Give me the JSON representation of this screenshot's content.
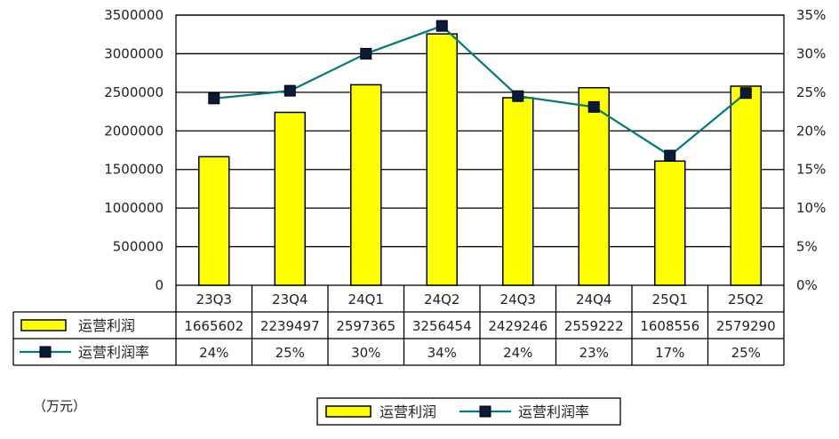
{
  "chart_data": {
    "type": "bar",
    "categories": [
      "23Q3",
      "23Q4",
      "24Q1",
      "24Q2",
      "24Q3",
      "24Q4",
      "25Q1",
      "25Q2"
    ],
    "series": [
      {
        "name": "运营利润",
        "type": "bar",
        "axis": "left",
        "values": [
          1665602,
          2239497,
          2597365,
          3256454,
          2429246,
          2559222,
          1608556,
          2579290
        ],
        "labels": [
          "1665602",
          "2239497",
          "2597365",
          "3256454",
          "2429246",
          "2559222",
          "1608556",
          "2579290"
        ],
        "color": "#ffff00"
      },
      {
        "name": "运营利润率",
        "type": "line",
        "axis": "right",
        "values": [
          24.2,
          25.2,
          30.0,
          33.6,
          24.5,
          23.1,
          16.8,
          24.9
        ],
        "labels": [
          "24%",
          "25%",
          "30%",
          "34%",
          "24%",
          "23%",
          "17%",
          "25%"
        ],
        "color": "#007a7a"
      }
    ],
    "y_left": {
      "range": [
        0,
        3500000
      ],
      "ticks": [
        "0",
        "500000",
        "1000000",
        "1500000",
        "2000000",
        "2500000",
        "3000000",
        "3500000"
      ]
    },
    "y_right": {
      "range": [
        0,
        35
      ],
      "ticks": [
        "0%",
        "5%",
        "10%",
        "15%",
        "20%",
        "25%",
        "30%",
        "35%"
      ]
    },
    "unit_note": "（万元）",
    "grid": true,
    "legend_position": "bottom",
    "data_table": true
  }
}
